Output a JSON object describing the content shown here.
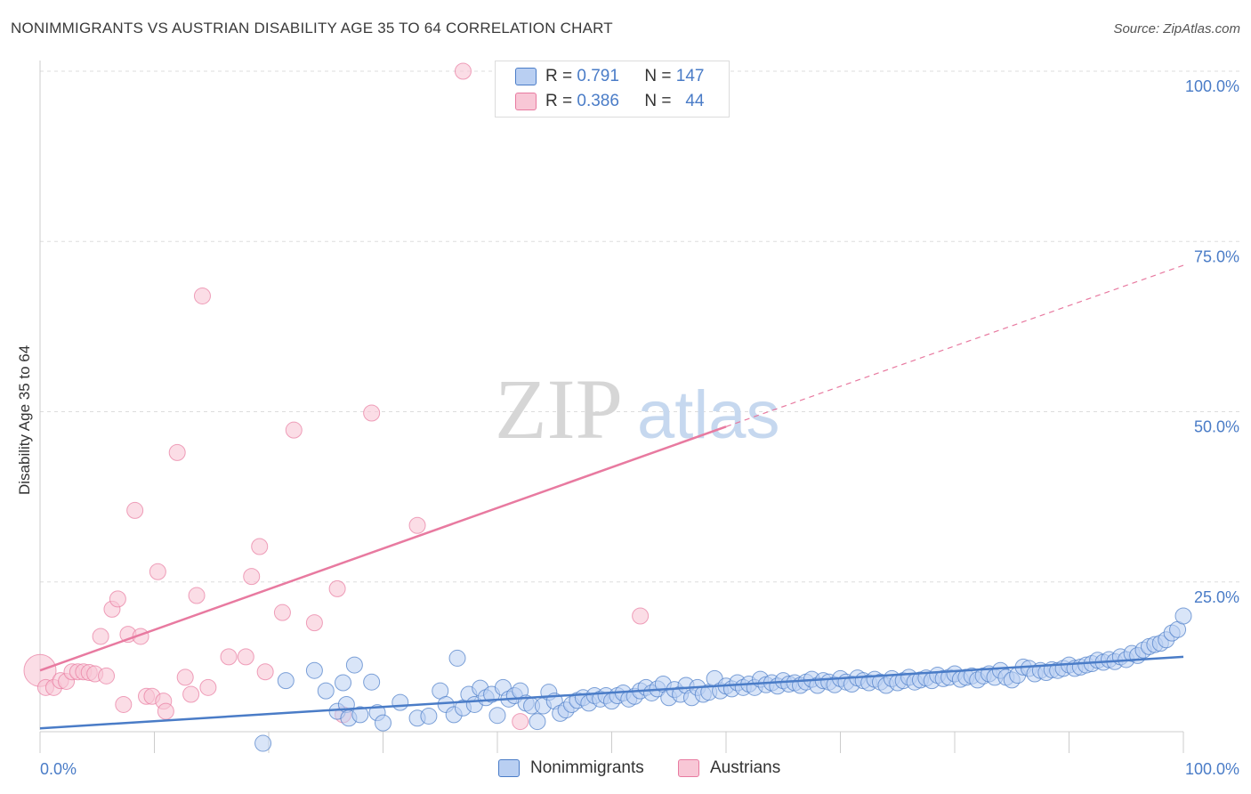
{
  "title": "NONIMMIGRANTS VS AUSTRIAN DISABILITY AGE 35 TO 64 CORRELATION CHART",
  "source": "Source: ZipAtlas.com",
  "watermark": {
    "zip": "ZIP",
    "atlas": "atlas"
  },
  "colors": {
    "blue": "#4a7cc7",
    "blue_fill": "#b9cff2",
    "pink": "#e87aa0",
    "pink_fill": "#f8c7d6",
    "grid": "#dddddd",
    "tick_text": "#4a7cc7"
  },
  "stats": [
    {
      "r_label": "R =",
      "r_value": "0.791",
      "n_label": "N =",
      "n_value": "147"
    },
    {
      "r_label": "R =",
      "r_value": "0.386",
      "n_label": "N =",
      "n_value": "44"
    }
  ],
  "chart_data": {
    "type": "scatter",
    "title": "NONIMMIGRANTS VS AUSTRIAN DISABILITY AGE 35 TO 64 CORRELATION CHART",
    "xlabel": "",
    "ylabel": "Disability Age 35 to 64",
    "xlim": [
      0,
      100
    ],
    "ylim": [
      0,
      100
    ],
    "x_tick_labels": [
      "0.0%",
      "100.0%"
    ],
    "y_tick_labels": [
      "25.0%",
      "50.0%",
      "75.0%",
      "100.0%"
    ],
    "y_ticks": [
      25,
      50,
      75,
      100
    ],
    "grid": true,
    "legend_position": "bottom",
    "series": [
      {
        "name": "Nonimmigrants",
        "color": "#4a7cc7",
        "trend": {
          "x": [
            0,
            100
          ],
          "y": [
            3.5,
            14.0
          ],
          "style": "solid"
        },
        "points": [
          [
            19.5,
            1.3
          ],
          [
            21.5,
            10.5
          ],
          [
            24,
            12
          ],
          [
            25,
            9
          ],
          [
            26,
            6
          ],
          [
            26.5,
            10.2
          ],
          [
            26.8,
            7
          ],
          [
            27,
            5
          ],
          [
            27.5,
            12.8
          ],
          [
            28,
            5.5
          ],
          [
            29,
            10.3
          ],
          [
            29.5,
            5.8
          ],
          [
            30,
            4.3
          ],
          [
            31.5,
            7.3
          ],
          [
            33,
            5
          ],
          [
            34,
            5.3
          ],
          [
            35,
            9
          ],
          [
            35.5,
            7
          ],
          [
            36.2,
            5.5
          ],
          [
            36.5,
            13.8
          ],
          [
            37,
            6.5
          ],
          [
            37.5,
            8.5
          ],
          [
            38,
            7
          ],
          [
            38.5,
            9.4
          ],
          [
            39,
            8
          ],
          [
            39.5,
            8.5
          ],
          [
            40,
            5.4
          ],
          [
            40.5,
            9.5
          ],
          [
            41,
            7.8
          ],
          [
            41.5,
            8.3
          ],
          [
            42,
            9
          ],
          [
            42.5,
            7.2
          ],
          [
            43,
            6.8
          ],
          [
            43.5,
            4.5
          ],
          [
            44,
            6.8
          ],
          [
            44.5,
            8.8
          ],
          [
            45,
            7.5
          ],
          [
            45.5,
            5.7
          ],
          [
            46,
            6.2
          ],
          [
            46.5,
            7
          ],
          [
            47,
            7.6
          ],
          [
            47.5,
            8
          ],
          [
            48,
            7.2
          ],
          [
            48.5,
            8.3
          ],
          [
            49,
            7.8
          ],
          [
            49.5,
            8.3
          ],
          [
            50,
            7.5
          ],
          [
            50.5,
            8.3
          ],
          [
            51,
            8.7
          ],
          [
            51.5,
            7.8
          ],
          [
            52,
            8.2
          ],
          [
            52.5,
            9
          ],
          [
            53,
            9.5
          ],
          [
            53.5,
            8.7
          ],
          [
            54,
            9.3
          ],
          [
            54.5,
            10
          ],
          [
            55,
            8
          ],
          [
            55.5,
            9.2
          ],
          [
            56,
            8.5
          ],
          [
            56.5,
            9.8
          ],
          [
            57,
            8
          ],
          [
            57.5,
            9.5
          ],
          [
            58,
            8.5
          ],
          [
            58.5,
            8.8
          ],
          [
            59,
            10.8
          ],
          [
            59.5,
            9
          ],
          [
            60,
            9.7
          ],
          [
            60.5,
            9.3
          ],
          [
            61,
            10.2
          ],
          [
            61.5,
            9.5
          ],
          [
            62,
            10
          ],
          [
            62.5,
            9.5
          ],
          [
            63,
            10.7
          ],
          [
            63.5,
            9.9
          ],
          [
            64,
            10.2
          ],
          [
            64.5,
            9.7
          ],
          [
            65,
            10.5
          ],
          [
            65.5,
            10
          ],
          [
            66,
            10.2
          ],
          [
            66.5,
            9.8
          ],
          [
            67,
            10.3
          ],
          [
            67.5,
            10.7
          ],
          [
            68,
            9.8
          ],
          [
            68.5,
            10.5
          ],
          [
            69,
            10.3
          ],
          [
            69.5,
            9.9
          ],
          [
            70,
            10.8
          ],
          [
            70.5,
            10.3
          ],
          [
            71,
            10
          ],
          [
            71.5,
            10.9
          ],
          [
            72,
            10.5
          ],
          [
            72.5,
            10.2
          ],
          [
            73,
            10.7
          ],
          [
            73.5,
            10.3
          ],
          [
            74,
            9.8
          ],
          [
            74.5,
            10.8
          ],
          [
            75,
            10.2
          ],
          [
            75.5,
            10.5
          ],
          [
            76,
            11
          ],
          [
            76.5,
            10.3
          ],
          [
            77,
            10.6
          ],
          [
            77.5,
            10.9
          ],
          [
            78,
            10.5
          ],
          [
            78.5,
            11.3
          ],
          [
            79,
            10.8
          ],
          [
            79.5,
            11
          ],
          [
            80,
            11.5
          ],
          [
            80.5,
            10.7
          ],
          [
            81,
            11
          ],
          [
            81.5,
            11.2
          ],
          [
            82,
            10.6
          ],
          [
            82.5,
            11.2
          ],
          [
            83,
            11.5
          ],
          [
            83.5,
            11
          ],
          [
            84,
            12
          ],
          [
            84.5,
            11
          ],
          [
            85,
            10.6
          ],
          [
            85.5,
            11.3
          ],
          [
            86,
            12.5
          ],
          [
            86.5,
            12.3
          ],
          [
            87,
            11.5
          ],
          [
            87.5,
            12
          ],
          [
            88,
            11.7
          ],
          [
            88.5,
            12.1
          ],
          [
            89,
            12
          ],
          [
            89.5,
            12.3
          ],
          [
            90,
            12.8
          ],
          [
            90.5,
            12.3
          ],
          [
            91,
            12.5
          ],
          [
            91.5,
            12.8
          ],
          [
            92,
            13
          ],
          [
            92.5,
            13.5
          ],
          [
            93,
            13.2
          ],
          [
            93.5,
            13.6
          ],
          [
            94,
            13.3
          ],
          [
            94.5,
            14
          ],
          [
            95,
            13.6
          ],
          [
            95.5,
            14.5
          ],
          [
            96,
            14.2
          ],
          [
            96.5,
            15
          ],
          [
            97,
            15.5
          ],
          [
            97.5,
            15.8
          ],
          [
            98,
            16
          ],
          [
            98.5,
            16.5
          ],
          [
            99,
            17.5
          ],
          [
            99.5,
            18
          ],
          [
            100,
            20
          ]
        ]
      },
      {
        "name": "Austrians",
        "color": "#e87aa0",
        "trend": {
          "x": [
            0,
            60
          ],
          "y": [
            12,
            47.8
          ],
          "style": "solid",
          "extension": {
            "x": [
              60,
              100
            ],
            "y": [
              47.8,
              71.5
            ],
            "style": "dashed"
          }
        },
        "points": [
          [
            0,
            12
          ],
          [
            0.5,
            9.5
          ],
          [
            1.2,
            9.5
          ],
          [
            1.8,
            10.5
          ],
          [
            2.3,
            10.4
          ],
          [
            2.8,
            11.8
          ],
          [
            3.3,
            11.8
          ],
          [
            3.8,
            11.8
          ],
          [
            4.3,
            11.7
          ],
          [
            4.8,
            11.5
          ],
          [
            5.3,
            17
          ],
          [
            5.8,
            11.2
          ],
          [
            6.3,
            21
          ],
          [
            6.8,
            22.5
          ],
          [
            7.3,
            7
          ],
          [
            7.7,
            17.3
          ],
          [
            8.3,
            35.5
          ],
          [
            8.8,
            17
          ],
          [
            9.3,
            8.2
          ],
          [
            9.8,
            8.2
          ],
          [
            10.3,
            26.5
          ],
          [
            10.8,
            7.5
          ],
          [
            11,
            6
          ],
          [
            12,
            44
          ],
          [
            12.7,
            11
          ],
          [
            13.2,
            8.5
          ],
          [
            13.7,
            23
          ],
          [
            14.2,
            67
          ],
          [
            14.7,
            9.5
          ],
          [
            16.5,
            14
          ],
          [
            18,
            14
          ],
          [
            18.5,
            25.8
          ],
          [
            19.2,
            30.2
          ],
          [
            19.7,
            11.8
          ],
          [
            21.2,
            20.5
          ],
          [
            22.2,
            47.3
          ],
          [
            24,
            19
          ],
          [
            26,
            24
          ],
          [
            26.5,
            5.5
          ],
          [
            29,
            49.8
          ],
          [
            33,
            33.3
          ],
          [
            37,
            100
          ],
          [
            42,
            4.5
          ],
          [
            52.5,
            20
          ]
        ]
      }
    ]
  }
}
